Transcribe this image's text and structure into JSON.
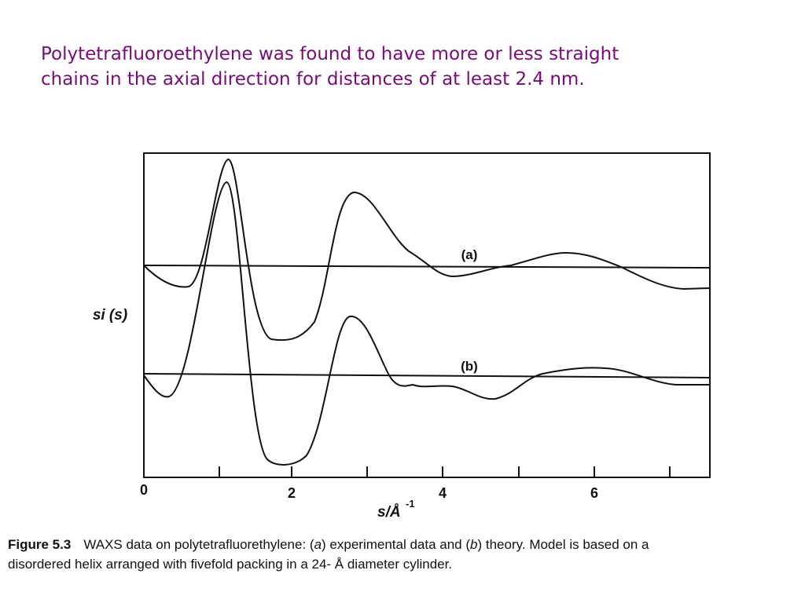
{
  "slide": {
    "title_lines": [
      "Polytetrafluoroethylene was found to have more or less straight",
      "chains in the axial direction for distances of at least 2.4 nm."
    ],
    "figure": {
      "y_label": "si (s)",
      "x_label": "s/Å",
      "x_label_exponent": "-1",
      "x_tick_labels": [
        "0",
        "2",
        "4",
        "6"
      ],
      "curve_labels": [
        "(a)",
        "(b)"
      ]
    },
    "caption": {
      "number": "Figure 5.3",
      "line1": [
        "WAXS data on polytetrafluorethylene: (",
        "a",
        ") experimental data and (",
        "b",
        ") theory. Model is based on a"
      ],
      "line2": "disordered helix arranged with fivefold packing in a 24- Å diameter cylinder."
    }
  }
}
